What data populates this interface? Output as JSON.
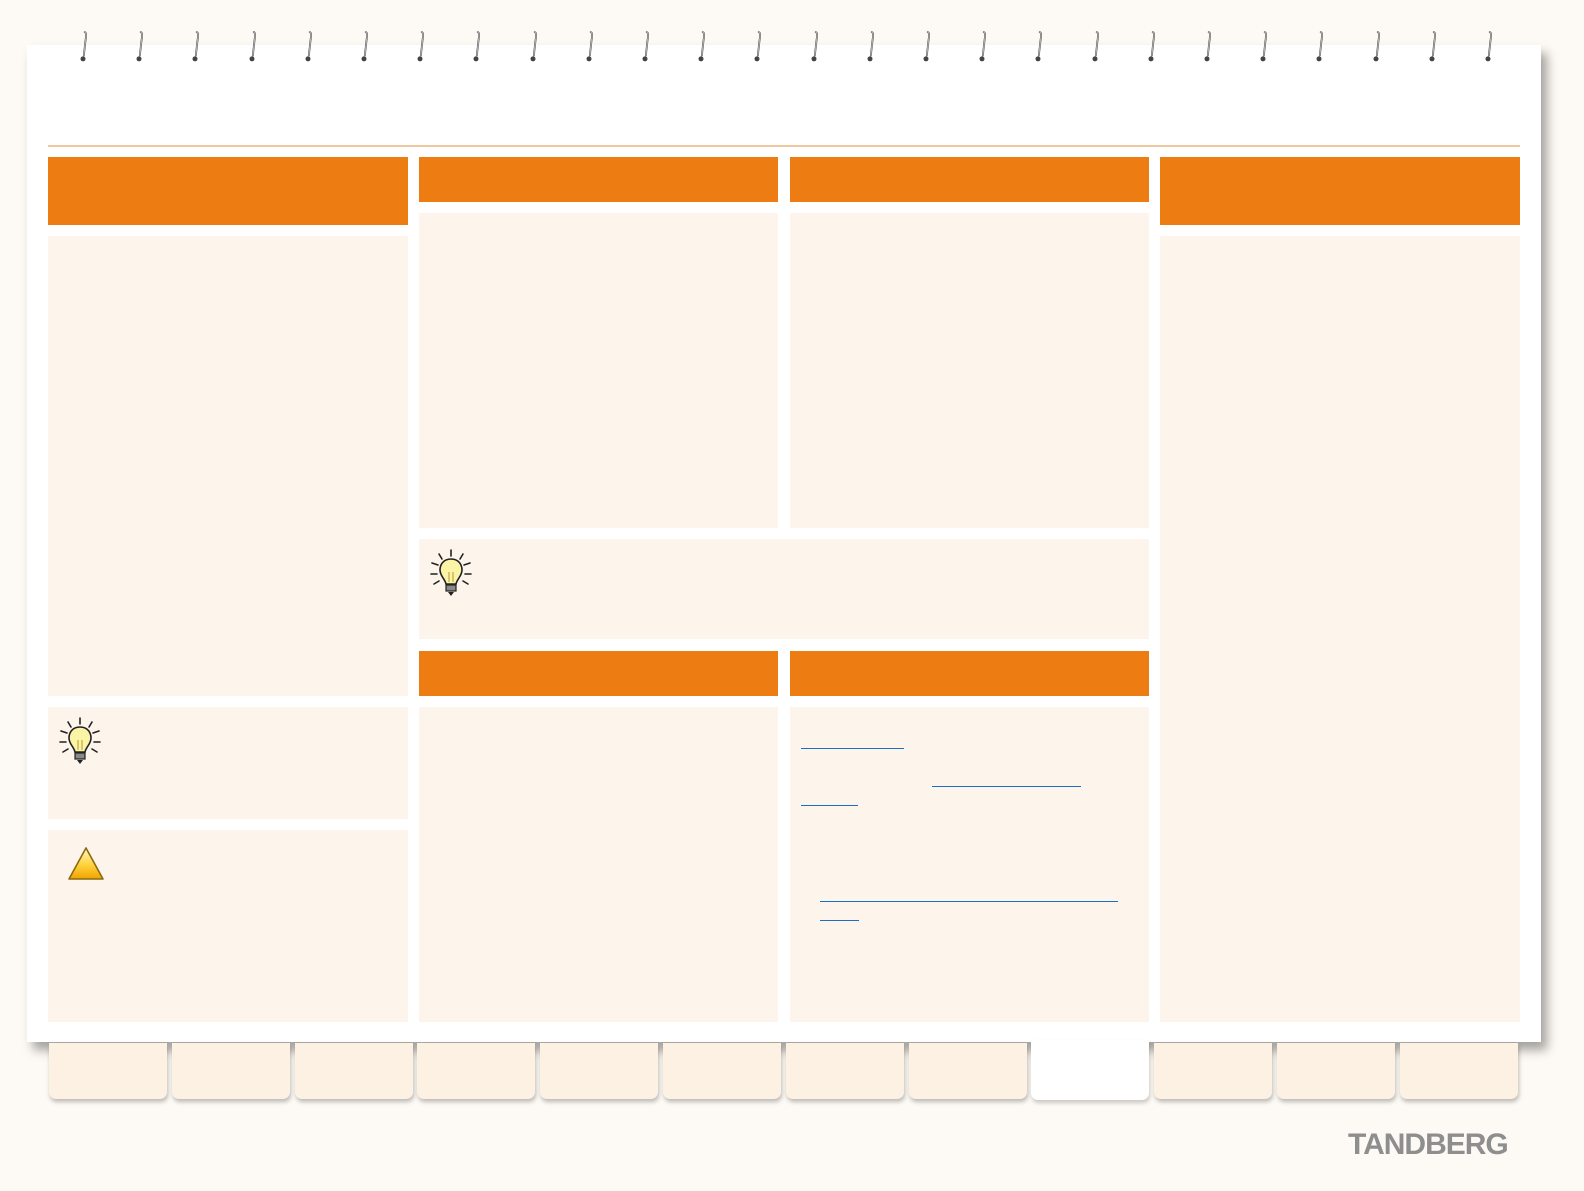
{
  "brand": {
    "logo_text": "TANDBERG",
    "color": "#8e8e8e"
  },
  "colors": {
    "accent": "#ed7d13",
    "panel": "#fdf5ec",
    "link": "#1a6fc4"
  },
  "icons": {
    "tip": "lightbulb-icon",
    "warning": "warning-triangle-icon",
    "binding": "spiral-ring-icon"
  },
  "tabs": {
    "count": 12,
    "active_index": 8
  }
}
